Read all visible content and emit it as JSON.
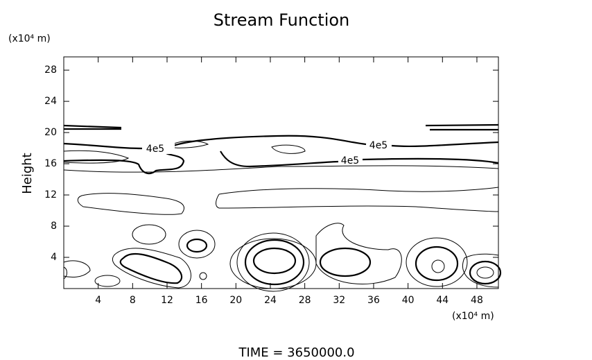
{
  "chart_data": {
    "type": "contour",
    "title": "Stream Function",
    "x_unit_label": "(x10⁴ m)",
    "y_unit_label": "(x10⁴ m)",
    "ylabel": "Height",
    "footer": "TIME = 3650000.0",
    "contour_labels": [
      "4e5",
      "4e5",
      "4e5"
    ],
    "xlim": [
      0,
      50.5
    ],
    "ylim": [
      0,
      29.7
    ],
    "xticks": [
      4,
      8,
      12,
      16,
      20,
      24,
      28,
      32,
      36,
      40,
      44,
      48
    ],
    "yticks": [
      4,
      8,
      12,
      16,
      20,
      24,
      28
    ]
  }
}
